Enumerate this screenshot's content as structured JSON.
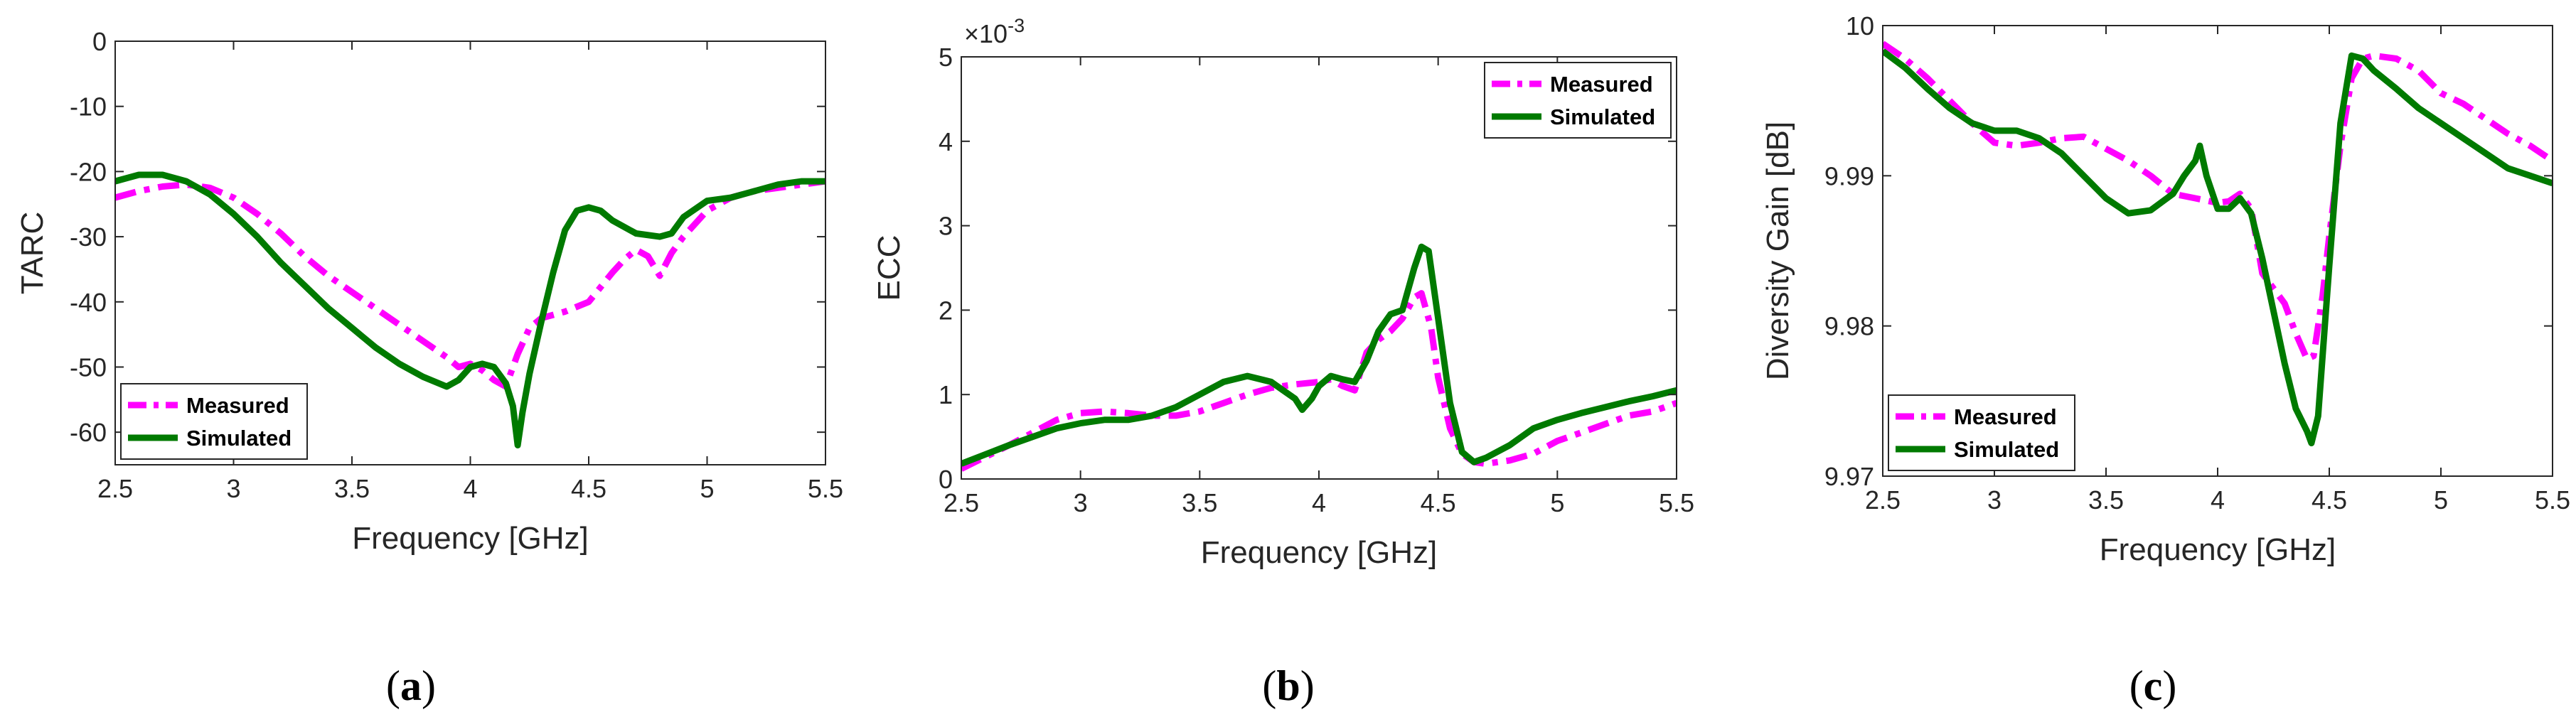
{
  "colors": {
    "measured": "#ff00ff",
    "simulated": "#007a00",
    "axis": "#262626"
  },
  "chart_data": [
    {
      "type": "line",
      "panel_label": "a",
      "xlabel": "Frequency [GHz]",
      "ylabel": "TARC",
      "xlim": [
        2.5,
        5.5
      ],
      "ylim": [
        -65,
        0
      ],
      "xticks": [
        2.5,
        3,
        3.5,
        4,
        4.5,
        5,
        5.5
      ],
      "xtick_labels": [
        "2.5",
        "3",
        "3.5",
        "4",
        "4.5",
        "5",
        "5.5"
      ],
      "yticks": [
        0,
        -10,
        -20,
        -30,
        -40,
        -50,
        -60
      ],
      "ytick_labels": [
        "0",
        "-10",
        "-20",
        "-30",
        "-40",
        "-50",
        "-60"
      ],
      "exponent_label": "",
      "legend_location": "bottom-left",
      "series": [
        {
          "name": "Measured",
          "style": "dashdot",
          "x": [
            2.5,
            2.6,
            2.7,
            2.8,
            2.9,
            3.0,
            3.1,
            3.2,
            3.3,
            3.4,
            3.5,
            3.6,
            3.7,
            3.8,
            3.9,
            3.95,
            4.0,
            4.05,
            4.1,
            4.15,
            4.2,
            4.25,
            4.3,
            4.4,
            4.5,
            4.6,
            4.65,
            4.7,
            4.75,
            4.8,
            4.85,
            4.9,
            5.0,
            5.1,
            5.2,
            5.3,
            5.4,
            5.5
          ],
          "y": [
            -24,
            -23,
            -22.3,
            -22,
            -22.5,
            -24,
            -26.5,
            -29.5,
            -33,
            -36,
            -38.5,
            -41,
            -43.5,
            -46,
            -48.5,
            -50,
            -49.5,
            -50.5,
            -52,
            -53,
            -48,
            -44,
            -42.5,
            -41.5,
            -40,
            -35.5,
            -33.5,
            -32,
            -33,
            -36,
            -32.5,
            -30,
            -26,
            -24,
            -23,
            -22.5,
            -22,
            -21.5
          ]
        },
        {
          "name": "Simulated",
          "style": "solid",
          "x": [
            2.5,
            2.6,
            2.7,
            2.8,
            2.9,
            3.0,
            3.1,
            3.2,
            3.3,
            3.4,
            3.5,
            3.6,
            3.7,
            3.8,
            3.9,
            3.95,
            4.0,
            4.05,
            4.1,
            4.15,
            4.18,
            4.2,
            4.22,
            4.25,
            4.3,
            4.35,
            4.4,
            4.45,
            4.5,
            4.55,
            4.6,
            4.7,
            4.8,
            4.85,
            4.9,
            5.0,
            5.1,
            5.2,
            5.3,
            5.4,
            5.5
          ],
          "y": [
            -21.5,
            -20.5,
            -20.5,
            -21.5,
            -23.5,
            -26.5,
            -30,
            -34,
            -37.5,
            -41,
            -44,
            -47,
            -49.5,
            -51.5,
            -53,
            -52,
            -50,
            -49.5,
            -50,
            -52.5,
            -56,
            -62,
            -57,
            -51,
            -43,
            -35.5,
            -29,
            -26,
            -25.5,
            -26,
            -27.5,
            -29.5,
            -30,
            -29.5,
            -27,
            -24.5,
            -24,
            -23,
            -22,
            -21.5,
            -21.5
          ]
        }
      ]
    },
    {
      "type": "line",
      "panel_label": "b",
      "xlabel": "Frequency [GHz]",
      "ylabel": "ECC",
      "xlim": [
        2.5,
        5.5
      ],
      "ylim": [
        0,
        5
      ],
      "xticks": [
        2.5,
        3,
        3.5,
        4,
        4.5,
        5,
        5.5
      ],
      "xtick_labels": [
        "2.5",
        "3",
        "3.5",
        "4",
        "4.5",
        "5",
        "5.5"
      ],
      "yticks": [
        0,
        1,
        2,
        3,
        4,
        5
      ],
      "ytick_labels": [
        "0",
        "1",
        "2",
        "3",
        "4",
        "5"
      ],
      "exponent_label": "×10",
      "exponent_power": "-3",
      "legend_location": "top-right",
      "series": [
        {
          "name": "Measured",
          "style": "dashdot",
          "x": [
            2.5,
            2.7,
            2.9,
            3.0,
            3.1,
            3.2,
            3.3,
            3.4,
            3.5,
            3.6,
            3.7,
            3.8,
            3.9,
            4.0,
            4.05,
            4.1,
            4.15,
            4.2,
            4.25,
            4.3,
            4.35,
            4.4,
            4.43,
            4.47,
            4.5,
            4.55,
            4.6,
            4.65,
            4.7,
            4.8,
            4.9,
            5.0,
            5.1,
            5.2,
            5.3,
            5.4,
            5.5
          ],
          "y": [
            0.12,
            0.4,
            0.7,
            0.78,
            0.8,
            0.78,
            0.75,
            0.75,
            0.8,
            0.9,
            1.0,
            1.08,
            1.12,
            1.15,
            1.18,
            1.1,
            1.05,
            1.5,
            1.65,
            1.75,
            1.9,
            2.15,
            2.2,
            1.8,
            1.2,
            0.6,
            0.3,
            0.2,
            0.18,
            0.22,
            0.3,
            0.45,
            0.55,
            0.65,
            0.75,
            0.8,
            0.9
          ]
        },
        {
          "name": "Simulated",
          "style": "solid",
          "x": [
            2.5,
            2.7,
            2.9,
            3.0,
            3.1,
            3.2,
            3.3,
            3.4,
            3.5,
            3.6,
            3.7,
            3.8,
            3.85,
            3.9,
            3.93,
            3.97,
            4.0,
            4.05,
            4.1,
            4.15,
            4.2,
            4.25,
            4.3,
            4.35,
            4.4,
            4.43,
            4.46,
            4.5,
            4.55,
            4.6,
            4.65,
            4.7,
            4.8,
            4.9,
            5.0,
            5.1,
            5.2,
            5.3,
            5.4,
            5.5
          ],
          "y": [
            0.18,
            0.4,
            0.6,
            0.66,
            0.7,
            0.7,
            0.75,
            0.85,
            1.0,
            1.15,
            1.22,
            1.15,
            1.05,
            0.95,
            0.82,
            0.95,
            1.1,
            1.22,
            1.18,
            1.15,
            1.4,
            1.75,
            1.95,
            2.0,
            2.5,
            2.75,
            2.7,
            1.9,
            0.9,
            0.32,
            0.2,
            0.25,
            0.4,
            0.6,
            0.7,
            0.78,
            0.85,
            0.92,
            0.98,
            1.05
          ]
        }
      ]
    },
    {
      "type": "line",
      "panel_label": "c",
      "xlabel": "Frequency [GHz]",
      "ylabel": "Diversity Gain [dB]",
      "xlim": [
        2.5,
        5.5
      ],
      "ylim": [
        9.97,
        10
      ],
      "xticks": [
        2.5,
        3,
        3.5,
        4,
        4.5,
        5,
        5.5
      ],
      "xtick_labels": [
        "2.5",
        "3",
        "3.5",
        "4",
        "4.5",
        "5",
        "5.5"
      ],
      "yticks": [
        9.97,
        9.98,
        9.99,
        10
      ],
      "ytick_labels": [
        "9.97",
        "9.98",
        "9.99",
        "10"
      ],
      "exponent_label": "",
      "legend_location": "bottom-left",
      "series": [
        {
          "name": "Measured",
          "style": "dashdot",
          "x": [
            2.5,
            2.6,
            2.7,
            2.8,
            2.9,
            3.0,
            3.1,
            3.2,
            3.3,
            3.4,
            3.5,
            3.6,
            3.7,
            3.8,
            3.9,
            4.0,
            4.05,
            4.1,
            4.15,
            4.2,
            4.25,
            4.3,
            4.35,
            4.4,
            4.43,
            4.47,
            4.5,
            4.55,
            4.6,
            4.65,
            4.7,
            4.8,
            4.9,
            5.0,
            5.1,
            5.2,
            5.3,
            5.4,
            5.5
          ],
          "y": [
            9.9988,
            9.9978,
            9.9965,
            9.995,
            9.9935,
            9.9922,
            9.992,
            9.9922,
            9.9925,
            9.9926,
            9.9918,
            9.991,
            9.99,
            9.9888,
            9.9885,
            9.9882,
            9.9883,
            9.9888,
            9.9878,
            9.9835,
            9.9825,
            9.9815,
            9.9795,
            9.9778,
            9.978,
            9.982,
            9.986,
            9.992,
            9.9965,
            9.9978,
            9.998,
            9.9978,
            9.997,
            9.9955,
            9.9948,
            9.9938,
            9.9928,
            9.992,
            9.991
          ]
        },
        {
          "name": "Simulated",
          "style": "solid",
          "x": [
            2.5,
            2.6,
            2.7,
            2.8,
            2.9,
            3.0,
            3.1,
            3.2,
            3.3,
            3.4,
            3.5,
            3.6,
            3.7,
            3.8,
            3.85,
            3.9,
            3.92,
            3.95,
            4.0,
            4.05,
            4.1,
            4.15,
            4.2,
            4.25,
            4.3,
            4.35,
            4.4,
            4.42,
            4.45,
            4.5,
            4.55,
            4.6,
            4.65,
            4.7,
            4.8,
            4.9,
            5.0,
            5.1,
            5.2,
            5.3,
            5.4,
            5.5
          ],
          "y": [
            9.9983,
            9.9972,
            9.9958,
            9.9945,
            9.9935,
            9.993,
            9.993,
            9.9925,
            9.9915,
            9.99,
            9.9885,
            9.9875,
            9.9877,
            9.9888,
            9.99,
            9.991,
            9.992,
            9.99,
            9.9878,
            9.9878,
            9.9885,
            9.9875,
            9.9845,
            9.981,
            9.9775,
            9.9745,
            9.973,
            9.9722,
            9.974,
            9.984,
            9.9935,
            9.998,
            9.9978,
            9.997,
            9.9958,
            9.9945,
            9.9935,
            9.9925,
            9.9915,
            9.9905,
            9.99,
            9.9895
          ]
        }
      ]
    }
  ]
}
